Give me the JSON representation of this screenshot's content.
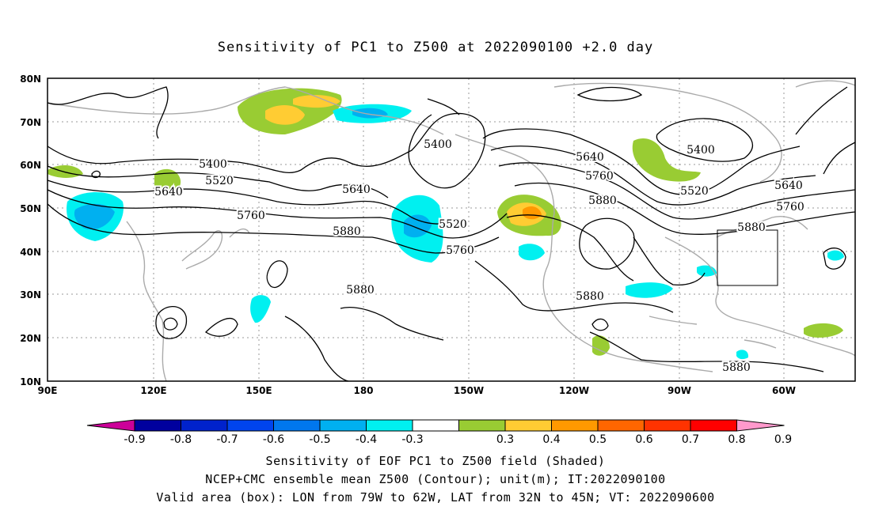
{
  "title": "Sensitivity of PC1 to Z500 at 2022090100 +2.0 day",
  "lat_labels": [
    "80N",
    "70N",
    "60N",
    "50N",
    "40N",
    "30N",
    "20N",
    "10N"
  ],
  "lon_labels": [
    "90E",
    "120E",
    "150E",
    "180",
    "150W",
    "120W",
    "90W",
    "60W"
  ],
  "contour_labels": [
    {
      "text": "5400"
    },
    {
      "text": "5520"
    },
    {
      "text": "5640"
    },
    {
      "text": "5760"
    },
    {
      "text": "5880"
    },
    {
      "text": "5400"
    },
    {
      "text": "5640"
    },
    {
      "text": "5520"
    },
    {
      "text": "5760"
    },
    {
      "text": "5880"
    },
    {
      "text": "5880"
    },
    {
      "text": "5640"
    },
    {
      "text": "5760"
    },
    {
      "text": "5880"
    },
    {
      "text": "5400"
    },
    {
      "text": "5520"
    },
    {
      "text": "5640"
    },
    {
      "text": "5760"
    },
    {
      "text": "5880"
    },
    {
      "text": "5880"
    },
    {
      "text": "5880"
    }
  ],
  "colorbar": {
    "ticks": [
      "-0.9",
      "-0.8",
      "-0.7",
      "-0.6",
      "-0.5",
      "-0.4",
      "-0.3",
      "0.3",
      "0.4",
      "0.5",
      "0.6",
      "0.7",
      "0.8",
      "0.9"
    ],
    "colors": [
      "#00009e",
      "#0022cc",
      "#0044ee",
      "#0077ee",
      "#00b0f0",
      "#00f0f0",
      "#ffffff",
      "#99cc33",
      "#ffcc33",
      "#ff9900",
      "#ff6600",
      "#ff3300",
      "#ff0000"
    ],
    "low_arrow_color": "#cc0099",
    "high_arrow_color": "#ff99cc"
  },
  "footer": {
    "line1": "Sensitivity of EOF PC1 to Z500 field (Shaded)",
    "line2": "NCEP+CMC ensemble mean Z500 (Contour); unit(m); IT:2022090100",
    "line3": "Valid area (box): LON from 79W to 62W, LAT from 32N to 45N; VT: 2022090600"
  }
}
